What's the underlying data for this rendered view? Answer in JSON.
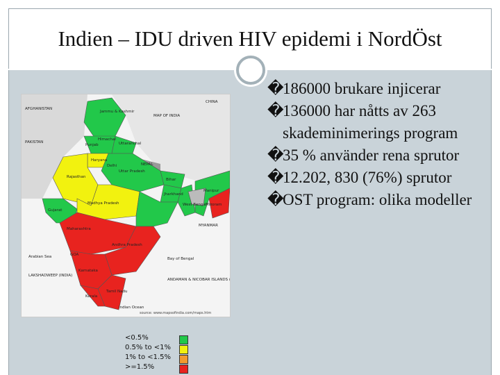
{
  "header": {
    "title": "Indien – IDU driven HIV epidemi i NordÖst"
  },
  "bullets": [
    {
      "marker": "�",
      "text": "186000 brukare injicerar"
    },
    {
      "marker": "�",
      "text": "136000 har nåtts av 263 skademinimerings program"
    },
    {
      "marker": "�",
      "text": "35 % använder rena sprutor"
    },
    {
      "marker": "�",
      "text": "12.202, 830 (76%) sprutor"
    },
    {
      "marker": "�",
      "text": "OST program: olika modeller"
    }
  ],
  "map": {
    "labels": [
      "AFGHANISTAN",
      "CHINA",
      "PAKISTAN",
      "MAP OF INDIA",
      "Jammu & Kashmir",
      "Punjab",
      "Himachal",
      "Uttaranchal",
      "Haryana",
      "Delhi",
      "NEPAL",
      "Rajasthan",
      "Uttar Pradesh",
      "Bihar",
      "Gujarat",
      "Madhya Pradesh",
      "Jharkhand",
      "West Bengal",
      "Maharashtra",
      "Andhra Pradesh",
      "Arabian Sea",
      "Bay of Bengal",
      "GOA",
      "Karnataka",
      "Tamil Nadu",
      "Kerala",
      "Indian Ocean",
      "LAKSHADWEEP (INDIA)",
      "ANDAMAN & NICOBAR ISLANDS (INDIA)",
      "Manipur",
      "Mizoram",
      "MYANMAR"
    ],
    "source": "source: www.mapsofindia.com/maps.htm"
  },
  "legend": [
    {
      "label": "<0.5%",
      "color": "#22c84a"
    },
    {
      "label": "0.5% to <1%",
      "color": "#f2f20f"
    },
    {
      "label": "1% to <1.5%",
      "color": "#f29a2e"
    },
    {
      "label": ">=1.5%",
      "color": "#e8231f"
    }
  ]
}
